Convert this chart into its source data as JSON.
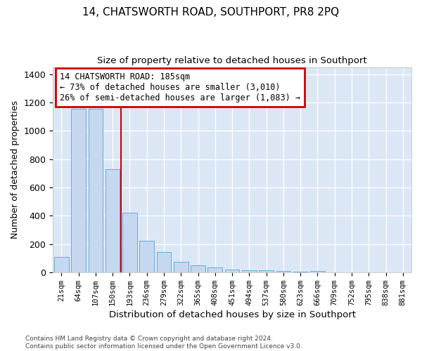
{
  "title": "14, CHATSWORTH ROAD, SOUTHPORT, PR8 2PQ",
  "subtitle": "Size of property relative to detached houses in Southport",
  "xlabel": "Distribution of detached houses by size in Southport",
  "ylabel": "Number of detached properties",
  "footnote1": "Contains HM Land Registry data © Crown copyright and database right 2024.",
  "footnote2": "Contains public sector information licensed under the Open Government Licence v3.0.",
  "categories": [
    "21sqm",
    "64sqm",
    "107sqm",
    "150sqm",
    "193sqm",
    "236sqm",
    "279sqm",
    "322sqm",
    "365sqm",
    "408sqm",
    "451sqm",
    "494sqm",
    "537sqm",
    "580sqm",
    "623sqm",
    "666sqm",
    "709sqm",
    "752sqm",
    "795sqm",
    "838sqm",
    "881sqm"
  ],
  "values": [
    110,
    1155,
    1155,
    730,
    420,
    220,
    145,
    75,
    50,
    35,
    20,
    15,
    15,
    10,
    5,
    10,
    0,
    0,
    0,
    0,
    0
  ],
  "bar_color": "#c5d8ef",
  "bar_edge_color": "#6aaad4",
  "bg_color": "#dce7f5",
  "grid_color": "#ffffff",
  "vline_after_index": 3,
  "vline_color": "#cc0000",
  "annotation_line1": "14 CHATSWORTH ROAD: 185sqm",
  "annotation_line2": "← 73% of detached houses are smaller (3,010)",
  "annotation_line3": "26% of semi-detached houses are larger (1,083) →",
  "annotation_box_edgecolor": "#cc0000",
  "ylim_max": 1450,
  "yticks": [
    0,
    200,
    400,
    600,
    800,
    1000,
    1200,
    1400
  ],
  "title_fontsize": 11,
  "subtitle_fontsize": 9.5,
  "footnote_fontsize": 6.5
}
